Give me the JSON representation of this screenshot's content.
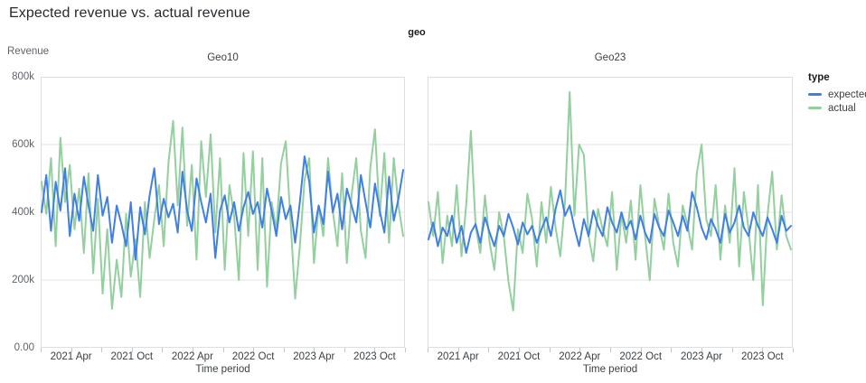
{
  "title": "Expected revenue vs. actual revenue",
  "legend": {
    "title": "type",
    "position": "right",
    "items": [
      {
        "label": "expected",
        "color": "#4080e4"
      },
      {
        "label": "actual",
        "color": "#94cf9f"
      }
    ]
  },
  "colors": {
    "expected": "#4080e4",
    "actual": "#94cf9f",
    "grid": "#e3e3e3",
    "plot_border": "#dcdee0",
    "tick_text": "#3c4043",
    "axis_text": "#5f6368"
  },
  "chart_data": {
    "type": "line",
    "title": "Expected revenue vs. actual revenue",
    "facet_field": "geo",
    "xlabel": "Time period",
    "ylabel": "Revenue",
    "ylim": [
      0,
      800000
    ],
    "grid": true,
    "y_ticks": [
      {
        "value_k": 0,
        "label": "0.00"
      },
      {
        "value_k": 200,
        "label": "200k"
      },
      {
        "value_k": 400,
        "label": "400k"
      },
      {
        "value_k": 600,
        "label": "600k"
      },
      {
        "value_k": 800,
        "label": "800k"
      }
    ],
    "x_domain_months": 36,
    "x_start": "2021 Jan",
    "x_minor_tick_every_months": 3,
    "x_tick_labels": [
      {
        "month": 3,
        "label": "2021 Apr"
      },
      {
        "month": 9,
        "label": "2021 Oct"
      },
      {
        "month": 15,
        "label": "2022 Apr"
      },
      {
        "month": 21,
        "label": "2022 Oct"
      },
      {
        "month": 27,
        "label": "2023 Apr"
      },
      {
        "month": 33,
        "label": "2023 Oct"
      }
    ],
    "facets": [
      {
        "name": "Geo10",
        "series": [
          {
            "name": "expected",
            "color": "#4080e4",
            "values_k": [
              400,
              510,
              345,
              490,
              405,
              530,
              330,
              455,
              375,
              505,
              420,
              345,
              510,
              390,
              445,
              310,
              420,
              365,
              300,
              430,
              260,
              415,
              335,
              450,
              530,
              365,
              440,
              385,
              425,
              340,
              520,
              405,
              345,
              500,
              430,
              370,
              455,
              265,
              405,
              450,
              370,
              430,
              345,
              415,
              460,
              395,
              430,
              355,
              470,
              405,
              330,
              445,
              380,
              420,
              310,
              430,
              565,
              490,
              340,
              420,
              365,
              520,
              400,
              455,
              350,
              470,
              420,
              370,
              510,
              430,
              355,
              485,
              405,
              340,
              505,
              375,
              440,
              525
            ]
          },
          {
            "name": "actual",
            "color": "#94cf9f",
            "values_k": [
              490,
              395,
              560,
              300,
              620,
              430,
              540,
              350,
              470,
              280,
              515,
              220,
              440,
              160,
              350,
              115,
              260,
              150,
              395,
              210,
              320,
              150,
              430,
              265,
              380,
              480,
              300,
              545,
              670,
              420,
              650,
              360,
              540,
              260,
              610,
              445,
              630,
              340,
              560,
              230,
              480,
              390,
              200,
              575,
              330,
              580,
              230,
              560,
              180,
              430,
              350,
              545,
              610,
              380,
              145,
              300,
              495,
              560,
              250,
              420,
              330,
              560,
              405,
              300,
              515,
              250,
              450,
              560,
              345,
              265,
              530,
              645,
              390,
              575,
              310,
              560,
              420,
              330
            ]
          }
        ]
      },
      {
        "name": "Geo23",
        "series": [
          {
            "name": "expected",
            "color": "#4080e4",
            "values_k": [
              320,
              370,
              300,
              355,
              330,
              390,
              310,
              360,
              280,
              340,
              365,
              310,
              385,
              340,
              300,
              360,
              330,
              395,
              355,
              305,
              370,
              335,
              360,
              310,
              350,
              385,
              330,
              410,
              465,
              390,
              420,
              355,
              300,
              380,
              330,
              405,
              360,
              330,
              415,
              370,
              340,
              400,
              350,
              375,
              320,
              390,
              340,
              310,
              395,
              355,
              330,
              405,
              370,
              330,
              390,
              345,
              460,
              415,
              355,
              320,
              380,
              350,
              310,
              395,
              340,
              370,
              420,
              355,
              330,
              400,
              360,
              330,
              385,
              350,
              310,
              390,
              345,
              360
            ]
          },
          {
            "name": "actual",
            "color": "#94cf9f",
            "values_k": [
              430,
              330,
              460,
              250,
              390,
              300,
              480,
              270,
              420,
              640,
              360,
              280,
              450,
              310,
              230,
              400,
              330,
              195,
              110,
              350,
              280,
              455,
              380,
              240,
              430,
              310,
              475,
              355,
              270,
              430,
              755,
              390,
              600,
              570,
              330,
              255,
              410,
              350,
              300,
              460,
              230,
              395,
              310,
              435,
              260,
              480,
              330,
              200,
              440,
              360,
              290,
              455,
              310,
              240,
              420,
              365,
              290,
              515,
              600,
              380,
              330,
              480,
              260,
              420,
              310,
              530,
              240,
              460,
              350,
              200,
              480,
              125,
              390,
              520,
              290,
              450,
              330,
              290
            ]
          }
        ]
      }
    ]
  }
}
